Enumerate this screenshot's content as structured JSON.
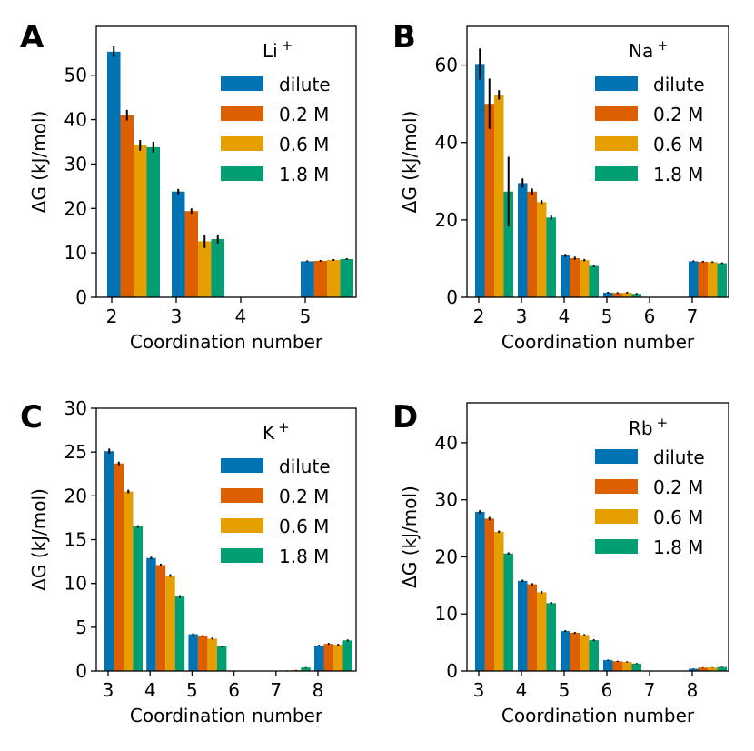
{
  "colors": {
    "dilute": "#0173b2",
    "0.2 M": "#de5f00",
    "0.6 M": "#e59f01",
    "1.8 M": "#029e73"
  },
  "chart_data": [
    {
      "type": "bar",
      "panel_letter": "A",
      "ion_label": "Li",
      "ion_charge": "+",
      "xlabel": "Coordination number",
      "ylabel": "ΔG (kJ/mol)",
      "categories": [
        "2",
        "3",
        "4",
        "5"
      ],
      "ylim": [
        0,
        61
      ],
      "yticks": [
        0,
        10,
        20,
        30,
        40,
        50
      ],
      "legend_position": "top-right",
      "series": [
        {
          "name": "dilute",
          "values": [
            55.3,
            23.8,
            null,
            8.1
          ],
          "errors": [
            1.2,
            0.6,
            0,
            0.2
          ]
        },
        {
          "name": "0.2 M",
          "values": [
            41.0,
            19.4,
            null,
            8.2
          ],
          "errors": [
            1.2,
            0.6,
            0,
            0.2
          ]
        },
        {
          "name": "0.6 M",
          "values": [
            34.2,
            12.6,
            null,
            8.4
          ],
          "errors": [
            1.2,
            1.5,
            0,
            0.2
          ]
        },
        {
          "name": "1.8 M",
          "values": [
            33.8,
            13.1,
            null,
            8.6
          ],
          "errors": [
            1.2,
            1.0,
            0,
            0.2
          ]
        }
      ]
    },
    {
      "type": "bar",
      "panel_letter": "B",
      "ion_label": "Na",
      "ion_charge": "+",
      "xlabel": "Coordination number",
      "ylabel": "ΔG (kJ/mol)",
      "categories": [
        "2",
        "3",
        "4",
        "5",
        "6",
        "7"
      ],
      "ylim": [
        0,
        70
      ],
      "yticks": [
        0,
        20,
        40,
        60
      ],
      "legend_position": "top-right",
      "series": [
        {
          "name": "dilute",
          "values": [
            60.3,
            29.5,
            10.8,
            1.2,
            null,
            9.3
          ],
          "errors": [
            4.0,
            1.2,
            0.4,
            0.2,
            0,
            0.2
          ]
        },
        {
          "name": "0.2 M",
          "values": [
            50.0,
            27.3,
            10.1,
            1.1,
            null,
            9.2
          ],
          "errors": [
            6.5,
            0.8,
            0.4,
            0.2,
            0,
            0.2
          ]
        },
        {
          "name": "0.6 M",
          "values": [
            52.3,
            24.6,
            9.6,
            1.2,
            null,
            9.1
          ],
          "errors": [
            1.2,
            0.5,
            0.3,
            0.2,
            0,
            0.2
          ]
        },
        {
          "name": "1.8 M",
          "values": [
            27.3,
            20.6,
            8.1,
            0.9,
            null,
            8.8
          ],
          "errors": [
            9.0,
            0.5,
            0.3,
            0.2,
            0,
            0.2
          ]
        }
      ]
    },
    {
      "type": "bar",
      "panel_letter": "C",
      "ion_label": "K",
      "ion_charge": "+",
      "xlabel": "Coordination number",
      "ylabel": "ΔG (kJ/mol)",
      "categories": [
        "3",
        "4",
        "5",
        "6",
        "7",
        "8"
      ],
      "ylim": [
        0,
        30
      ],
      "yticks": [
        0,
        5,
        10,
        15,
        20,
        25,
        30
      ],
      "legend_position": "top-right",
      "series": [
        {
          "name": "dilute",
          "values": [
            25.1,
            12.9,
            4.2,
            null,
            null,
            2.9
          ],
          "errors": [
            0.3,
            0.15,
            0.1,
            0,
            0,
            0.1
          ]
        },
        {
          "name": "0.2 M",
          "values": [
            23.7,
            12.1,
            4.0,
            null,
            0.05,
            3.1
          ],
          "errors": [
            0.2,
            0.15,
            0.1,
            0,
            0.03,
            0.1
          ]
        },
        {
          "name": "0.6 M",
          "values": [
            20.5,
            10.9,
            3.7,
            null,
            0.1,
            3.0
          ],
          "errors": [
            0.2,
            0.15,
            0.1,
            0,
            0.03,
            0.1
          ]
        },
        {
          "name": "1.8 M",
          "values": [
            16.5,
            8.5,
            2.8,
            null,
            0.4,
            3.5
          ],
          "errors": [
            0.15,
            0.15,
            0.1,
            0,
            0.05,
            0.1
          ]
        }
      ]
    },
    {
      "type": "bar",
      "panel_letter": "D",
      "ion_label": "Rb",
      "ion_charge": "+",
      "xlabel": "Coordination number",
      "ylabel": "ΔG (kJ/mol)",
      "categories": [
        "3",
        "4",
        "5",
        "6",
        "7",
        "8"
      ],
      "ylim": [
        0,
        47
      ],
      "yticks": [
        0,
        10,
        20,
        30,
        40
      ],
      "legend_position": "top-right",
      "series": [
        {
          "name": "dilute",
          "values": [
            27.9,
            15.8,
            7.0,
            1.9,
            null,
            0.4
          ],
          "errors": [
            0.3,
            0.2,
            0.15,
            0.1,
            0,
            0.05
          ]
        },
        {
          "name": "0.2 M",
          "values": [
            26.7,
            15.2,
            6.7,
            1.7,
            null,
            0.6
          ],
          "errors": [
            0.3,
            0.2,
            0.15,
            0.1,
            0,
            0.05
          ]
        },
        {
          "name": "0.6 M",
          "values": [
            24.4,
            13.8,
            6.3,
            1.6,
            null,
            0.6
          ],
          "errors": [
            0.2,
            0.2,
            0.15,
            0.1,
            0,
            0.05
          ]
        },
        {
          "name": "1.8 M",
          "values": [
            20.6,
            11.9,
            5.4,
            1.3,
            null,
            0.7
          ],
          "errors": [
            0.2,
            0.2,
            0.15,
            0.1,
            0,
            0.05
          ]
        }
      ]
    }
  ]
}
